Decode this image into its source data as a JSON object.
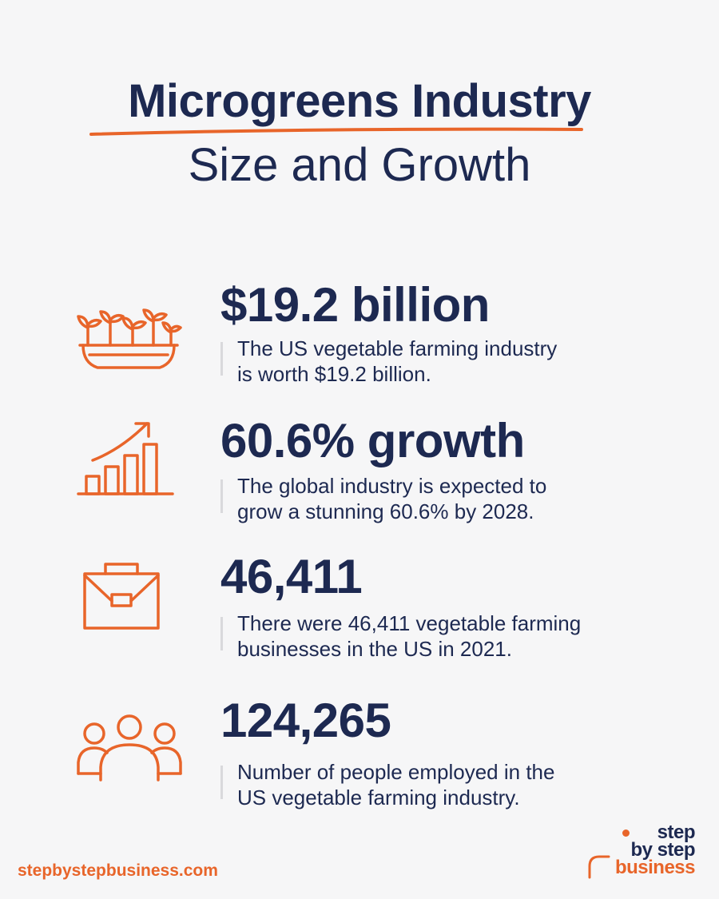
{
  "header": {
    "title": "Microgreens Industry",
    "subtitle": "Size and Growth"
  },
  "stats": [
    {
      "icon": "sprouts-planter-icon",
      "value": "$19.2 billion",
      "desc_line1": "The US vegetable farming industry",
      "desc_line2": "is worth $19.2 billion."
    },
    {
      "icon": "growth-chart-icon",
      "value": "60.6% growth",
      "desc_line1": "The global industry is expected to",
      "desc_line2": "grow a stunning 60.6% by 2028."
    },
    {
      "icon": "briefcase-icon",
      "value": "46,411",
      "desc_line1": "There were 46,411 vegetable farming",
      "desc_line2": "businesses in the US in 2021."
    },
    {
      "icon": "people-group-icon",
      "value": "124,265",
      "desc_line1": "Number of people employed in the",
      "desc_line2": "US vegetable farming industry."
    }
  ],
  "footer": {
    "url": "stepbystepbusiness.com",
    "logo_line1": "step",
    "logo_line2": "by step",
    "logo_line3": "business"
  },
  "colors": {
    "accent": "#e8652a",
    "text": "#1d2951",
    "background": "#f6f6f7"
  }
}
